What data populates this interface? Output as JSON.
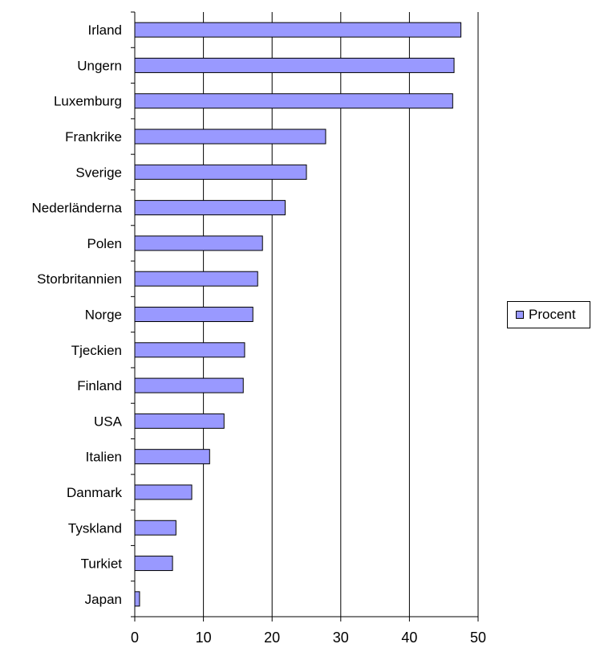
{
  "chart_data": {
    "type": "bar",
    "orientation": "horizontal",
    "title": "",
    "xlabel": "",
    "ylabel": "",
    "categories": [
      "Irland",
      "Ungern",
      "Luxemburg",
      "Frankrike",
      "Sverige",
      "Nederländerna",
      "Polen",
      "Storbritannien",
      "Norge",
      "Tjeckien",
      "Finland",
      "USA",
      "Italien",
      "Danmark",
      "Tyskland",
      "Turkiet",
      "Japan"
    ],
    "series": [
      {
        "name": "Procent",
        "color": "#9999ff",
        "values": [
          47.5,
          46.5,
          46.3,
          27.8,
          25.0,
          21.9,
          18.6,
          17.9,
          17.2,
          16.0,
          15.8,
          13.0,
          10.9,
          8.3,
          6.0,
          5.5,
          0.7
        ]
      }
    ],
    "xlim": [
      0,
      50
    ],
    "x_ticks": [
      0,
      10,
      20,
      30,
      40,
      50
    ],
    "grid": "vertical",
    "legend": {
      "position": "right",
      "entries": [
        "Procent"
      ]
    },
    "colors": {
      "bar_fill": "#9999ff",
      "bar_stroke": "#000000",
      "axis": "#000000",
      "grid": "#000000"
    }
  }
}
